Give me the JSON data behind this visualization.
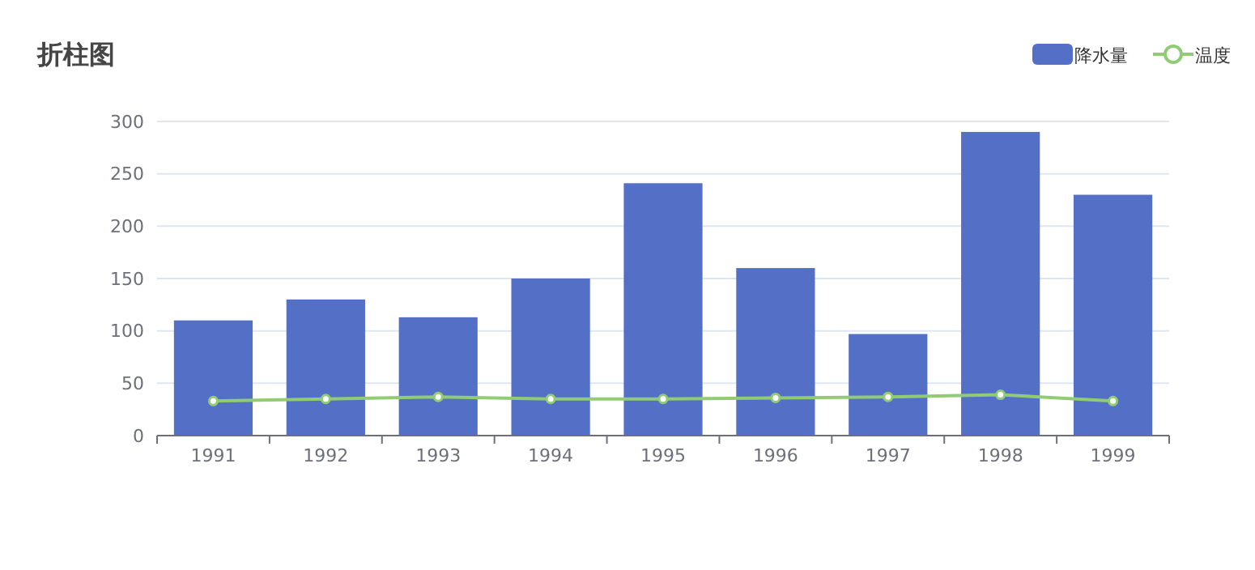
{
  "chart_data": {
    "type": "bar",
    "title": "折柱图",
    "categories": [
      "1991",
      "1992",
      "1993",
      "1994",
      "1995",
      "1996",
      "1997",
      "1998",
      "1999"
    ],
    "series": [
      {
        "name": "降水量",
        "color": "#5470c6",
        "values": [
          110,
          130,
          113,
          150,
          241,
          160,
          97,
          290,
          230
        ]
      },
      {
        "name": "温度",
        "type": "line",
        "color": "#91cc75",
        "values": [
          33,
          35,
          37,
          35,
          35,
          36,
          37,
          39,
          33
        ]
      }
    ],
    "ylim": [
      0,
      300
    ],
    "yticks": [
      0,
      50,
      100,
      150,
      200,
      250,
      300
    ],
    "grid": "y",
    "legend": "top right",
    "marker": "circle"
  }
}
